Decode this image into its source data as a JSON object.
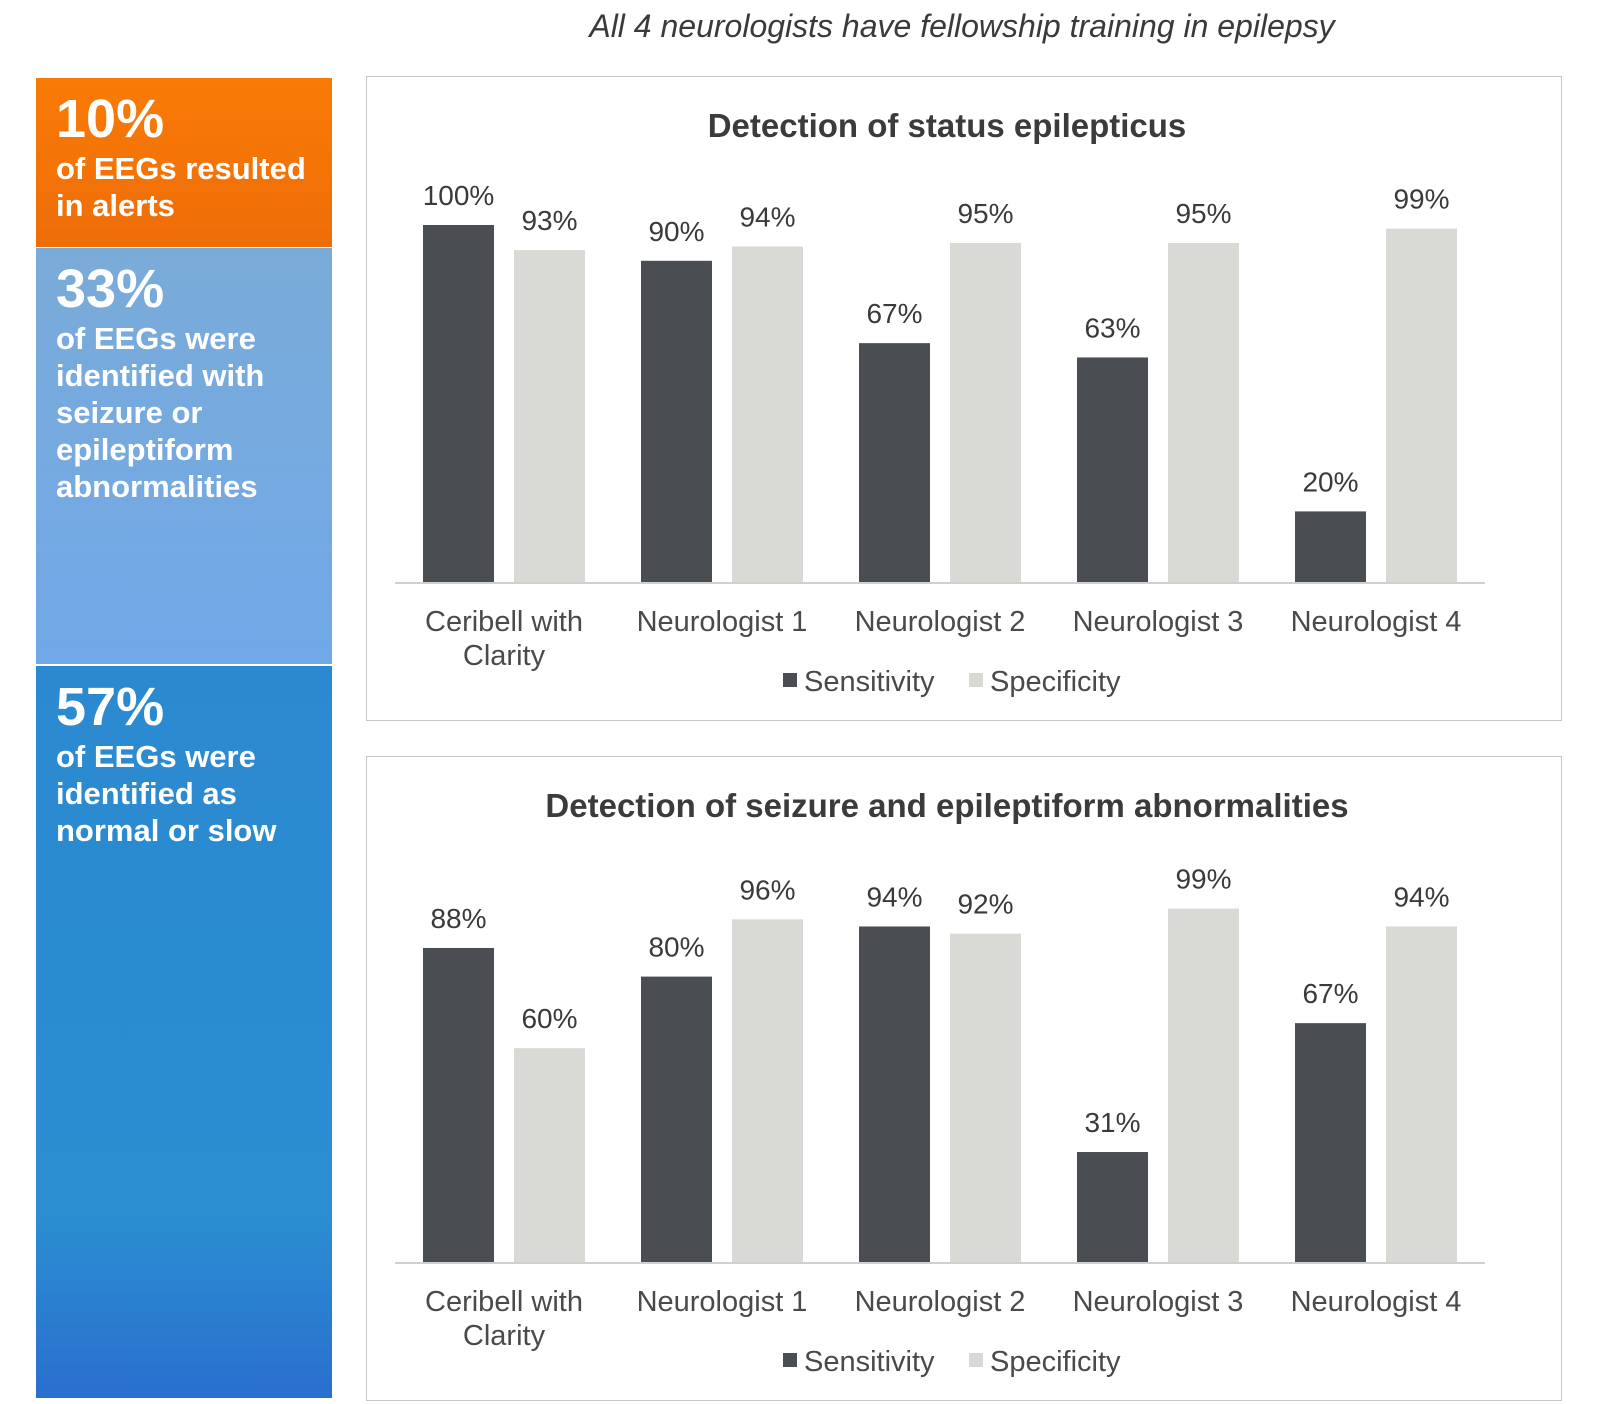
{
  "subtitle": "All 4 neurologists have fellowship training in epilepsy",
  "stats": [
    {
      "number": "10%",
      "text": "of EEGs resulted in alerts",
      "color": "#f57508"
    },
    {
      "number": "33%",
      "text": "of EEGs were identified with seizure or epileptiform abnormalities",
      "color": "#79aadc"
    },
    {
      "number": "57%",
      "text": "of EEGs were identified as normal or slow",
      "color": "#2b89d0"
    }
  ],
  "chart_data": [
    {
      "type": "bar",
      "title": "Detection of status epilepticus",
      "categories": [
        [
          "Ceribell with",
          "Clarity"
        ],
        [
          "Neurologist 1"
        ],
        [
          "Neurologist 2"
        ],
        [
          "Neurologist 3"
        ],
        [
          "Neurologist 4"
        ]
      ],
      "series": [
        {
          "name": "Sensitivity",
          "values": [
            100,
            90,
            67,
            63,
            20
          ],
          "labels": [
            "100%",
            "90%",
            "67%",
            "63%",
            "20%"
          ],
          "color": "#4a4d52"
        },
        {
          "name": "Specificity",
          "values": [
            93,
            94,
            95,
            95,
            99
          ],
          "labels": [
            "93%",
            "94%",
            "95%",
            "95%",
            "99%"
          ],
          "color": "#d9d9d6"
        }
      ],
      "ylim": [
        0,
        100
      ],
      "grid": false,
      "legend_position": "bottom"
    },
    {
      "type": "bar",
      "title": "Detection of seizure and epileptiform abnormalities",
      "categories": [
        [
          "Ceribell with",
          "Clarity"
        ],
        [
          "Neurologist 1"
        ],
        [
          "Neurologist 2"
        ],
        [
          "Neurologist 3"
        ],
        [
          "Neurologist 4"
        ]
      ],
      "series": [
        {
          "name": "Sensitivity",
          "values": [
            88,
            80,
            94,
            31,
            67
          ],
          "labels": [
            "88%",
            "80%",
            "94%",
            "31%",
            "67%"
          ],
          "color": "#4a4d52"
        },
        {
          "name": "Specificity",
          "values": [
            60,
            96,
            92,
            99,
            94
          ],
          "labels": [
            "60%",
            "96%",
            "92%",
            "99%",
            "94%"
          ],
          "color": "#d9d9d6"
        }
      ],
      "ylim": [
        0,
        100
      ],
      "grid": false,
      "legend_position": "bottom"
    }
  ]
}
